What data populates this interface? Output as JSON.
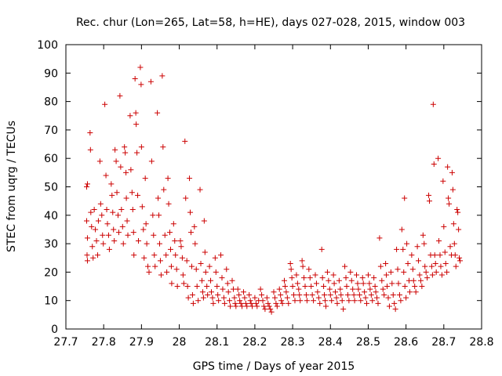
{
  "chart_data": {
    "type": "scatter",
    "title": "Rec. chur (Lon=265, Lat=58, h=HE), days 027-028, 2015, window 003",
    "xlabel": "GPS time / Days of year 2015",
    "ylabel": "STEC from uqrg / TECUs",
    "xlim": [
      27.7,
      28.8
    ],
    "ylim": [
      0,
      100
    ],
    "xticks": [
      "27.7",
      "27.8",
      "27.9",
      "28",
      "28.1",
      "28.2",
      "28.3",
      "28.4",
      "28.5",
      "28.6",
      "28.7",
      "28.8"
    ],
    "xtick_values": [
      27.7,
      27.8,
      27.9,
      28.0,
      28.1,
      28.2,
      28.3,
      28.4,
      28.5,
      28.6,
      28.7,
      28.8
    ],
    "yticks": [
      "0",
      "10",
      "20",
      "30",
      "40",
      "50",
      "60",
      "70",
      "80",
      "90",
      "100"
    ],
    "ytick_values": [
      0,
      10,
      20,
      30,
      40,
      50,
      60,
      70,
      80,
      90,
      100
    ],
    "grid": false,
    "marker": "plus",
    "color": "#cc0000",
    "points": [
      [
        27.755,
        50
      ],
      [
        27.757,
        51
      ],
      [
        27.755,
        38
      ],
      [
        27.757,
        32
      ],
      [
        27.756,
        26
      ],
      [
        27.757,
        24
      ],
      [
        27.764,
        69
      ],
      [
        27.765,
        63
      ],
      [
        27.766,
        41
      ],
      [
        27.768,
        36
      ],
      [
        27.77,
        29
      ],
      [
        27.772,
        25
      ],
      [
        27.775,
        42
      ],
      [
        27.778,
        35
      ],
      [
        27.781,
        31
      ],
      [
        27.784,
        26
      ],
      [
        27.786,
        38
      ],
      [
        27.79,
        59
      ],
      [
        27.792,
        44
      ],
      [
        27.795,
        40
      ],
      [
        27.797,
        33
      ],
      [
        27.799,
        30
      ],
      [
        27.803,
        79
      ],
      [
        27.806,
        54
      ],
      [
        27.808,
        42
      ],
      [
        27.81,
        37
      ],
      [
        27.813,
        33
      ],
      [
        27.815,
        28
      ],
      [
        27.82,
        51
      ],
      [
        27.822,
        47
      ],
      [
        27.824,
        41
      ],
      [
        27.826,
        35
      ],
      [
        27.828,
        31
      ],
      [
        27.83,
        63
      ],
      [
        27.833,
        59
      ],
      [
        27.835,
        48
      ],
      [
        27.838,
        40
      ],
      [
        27.84,
        34
      ],
      [
        27.843,
        82
      ],
      [
        27.845,
        57
      ],
      [
        27.847,
        42
      ],
      [
        27.85,
        36
      ],
      [
        27.852,
        30
      ],
      [
        27.855,
        64
      ],
      [
        27.857,
        62
      ],
      [
        27.859,
        55
      ],
      [
        27.86,
        46
      ],
      [
        27.862,
        38
      ],
      [
        27.864,
        33
      ],
      [
        27.87,
        75
      ],
      [
        27.872,
        56
      ],
      [
        27.875,
        48
      ],
      [
        27.877,
        42
      ],
      [
        27.879,
        34
      ],
      [
        27.88,
        26
      ],
      [
        27.883,
        88
      ],
      [
        27.885,
        76
      ],
      [
        27.886,
        72
      ],
      [
        27.888,
        62
      ],
      [
        27.89,
        47
      ],
      [
        27.892,
        31
      ],
      [
        27.897,
        92
      ],
      [
        27.899,
        86
      ],
      [
        27.9,
        64
      ],
      [
        27.902,
        43
      ],
      [
        27.905,
        35
      ],
      [
        27.907,
        25
      ],
      [
        27.91,
        53
      ],
      [
        27.912,
        37
      ],
      [
        27.914,
        30
      ],
      [
        27.917,
        22
      ],
      [
        27.92,
        20
      ],
      [
        27.925,
        87
      ],
      [
        27.927,
        59
      ],
      [
        27.93,
        40
      ],
      [
        27.932,
        33
      ],
      [
        27.934,
        26
      ],
      [
        27.936,
        22
      ],
      [
        27.942,
        76
      ],
      [
        27.944,
        46
      ],
      [
        27.946,
        40
      ],
      [
        27.948,
        30
      ],
      [
        27.95,
        24
      ],
      [
        27.952,
        19
      ],
      [
        27.955,
        89
      ],
      [
        27.957,
        64
      ],
      [
        27.959,
        49
      ],
      [
        27.962,
        33
      ],
      [
        27.965,
        26
      ],
      [
        27.967,
        20
      ],
      [
        27.97,
        53
      ],
      [
        27.972,
        44
      ],
      [
        27.975,
        34
      ],
      [
        27.977,
        28
      ],
      [
        27.979,
        22
      ],
      [
        27.98,
        16
      ],
      [
        27.985,
        37
      ],
      [
        27.988,
        31
      ],
      [
        27.99,
        26
      ],
      [
        27.993,
        21
      ],
      [
        27.995,
        15
      ],
      [
        28.003,
        31
      ],
      [
        28.005,
        29
      ],
      [
        28.008,
        25
      ],
      [
        28.01,
        19
      ],
      [
        28.012,
        16
      ],
      [
        28.015,
        66
      ],
      [
        28.017,
        46
      ],
      [
        28.02,
        24
      ],
      [
        28.022,
        15
      ],
      [
        28.024,
        11
      ],
      [
        28.027,
        53
      ],
      [
        28.029,
        41
      ],
      [
        28.031,
        34
      ],
      [
        28.033,
        22
      ],
      [
        28.035,
        12
      ],
      [
        28.037,
        9
      ],
      [
        28.04,
        36
      ],
      [
        28.042,
        30
      ],
      [
        28.045,
        21
      ],
      [
        28.047,
        15
      ],
      [
        28.05,
        10
      ],
      [
        28.055,
        49
      ],
      [
        28.057,
        23
      ],
      [
        28.06,
        17
      ],
      [
        28.062,
        13
      ],
      [
        28.064,
        11
      ],
      [
        28.066,
        38
      ],
      [
        28.068,
        27
      ],
      [
        28.07,
        20
      ],
      [
        28.073,
        15
      ],
      [
        28.075,
        12
      ],
      [
        28.08,
        22
      ],
      [
        28.083,
        17
      ],
      [
        28.085,
        13
      ],
      [
        28.088,
        11
      ],
      [
        28.09,
        9
      ],
      [
        28.095,
        25
      ],
      [
        28.097,
        20
      ],
      [
        28.1,
        15
      ],
      [
        28.102,
        12
      ],
      [
        28.104,
        10
      ],
      [
        28.11,
        26
      ],
      [
        28.113,
        18
      ],
      [
        28.115,
        14
      ],
      [
        28.118,
        11
      ],
      [
        28.12,
        9
      ],
      [
        28.125,
        21
      ],
      [
        28.128,
        16
      ],
      [
        28.13,
        13
      ],
      [
        28.133,
        10
      ],
      [
        28.135,
        8
      ],
      [
        28.14,
        17
      ],
      [
        28.143,
        14
      ],
      [
        28.146,
        11
      ],
      [
        28.148,
        9
      ],
      [
        28.15,
        8
      ],
      [
        28.155,
        14
      ],
      [
        28.158,
        12
      ],
      [
        28.16,
        10
      ],
      [
        28.163,
        9
      ],
      [
        28.166,
        8
      ],
      [
        28.17,
        13
      ],
      [
        28.173,
        11
      ],
      [
        28.176,
        9
      ],
      [
        28.179,
        8
      ],
      [
        28.185,
        12
      ],
      [
        28.188,
        10
      ],
      [
        28.19,
        9
      ],
      [
        28.193,
        8
      ],
      [
        28.2,
        11
      ],
      [
        28.203,
        9
      ],
      [
        28.206,
        8
      ],
      [
        28.21,
        10
      ],
      [
        28.215,
        14
      ],
      [
        28.218,
        12
      ],
      [
        28.221,
        10
      ],
      [
        28.224,
        8
      ],
      [
        28.227,
        7
      ],
      [
        28.232,
        11
      ],
      [
        28.235,
        9
      ],
      [
        28.238,
        8
      ],
      [
        28.241,
        7
      ],
      [
        28.244,
        6
      ],
      [
        28.25,
        13
      ],
      [
        28.253,
        11
      ],
      [
        28.256,
        9
      ],
      [
        28.259,
        8
      ],
      [
        28.265,
        14
      ],
      [
        28.268,
        12
      ],
      [
        28.27,
        10
      ],
      [
        28.273,
        9
      ],
      [
        28.278,
        17
      ],
      [
        28.28,
        15
      ],
      [
        28.283,
        13
      ],
      [
        28.286,
        11
      ],
      [
        28.289,
        9
      ],
      [
        28.294,
        23
      ],
      [
        28.296,
        21
      ],
      [
        28.298,
        18
      ],
      [
        28.3,
        15
      ],
      [
        28.303,
        12
      ],
      [
        28.306,
        10
      ],
      [
        28.31,
        19
      ],
      [
        28.313,
        16
      ],
      [
        28.316,
        14
      ],
      [
        28.318,
        12
      ],
      [
        28.32,
        10
      ],
      [
        28.325,
        24
      ],
      [
        28.327,
        22
      ],
      [
        28.33,
        18
      ],
      [
        28.333,
        15
      ],
      [
        28.336,
        12
      ],
      [
        28.338,
        10
      ],
      [
        28.343,
        21
      ],
      [
        28.346,
        18
      ],
      [
        28.349,
        15
      ],
      [
        28.352,
        12
      ],
      [
        28.355,
        10
      ],
      [
        28.36,
        19
      ],
      [
        28.363,
        16
      ],
      [
        28.366,
        13
      ],
      [
        28.369,
        11
      ],
      [
        28.372,
        9
      ],
      [
        28.377,
        28
      ],
      [
        28.379,
        18
      ],
      [
        28.382,
        15
      ],
      [
        28.384,
        12
      ],
      [
        28.386,
        10
      ],
      [
        28.388,
        8
      ],
      [
        28.392,
        20
      ],
      [
        28.395,
        17
      ],
      [
        28.398,
        14
      ],
      [
        28.4,
        12
      ],
      [
        28.403,
        10
      ],
      [
        28.408,
        19
      ],
      [
        28.41,
        16
      ],
      [
        28.413,
        13
      ],
      [
        28.416,
        11
      ],
      [
        28.418,
        9
      ],
      [
        28.423,
        17
      ],
      [
        28.426,
        14
      ],
      [
        28.428,
        12
      ],
      [
        28.431,
        10
      ],
      [
        28.434,
        7
      ],
      [
        28.438,
        22
      ],
      [
        28.441,
        18
      ],
      [
        28.443,
        15
      ],
      [
        28.446,
        12
      ],
      [
        28.449,
        10
      ],
      [
        28.453,
        20
      ],
      [
        28.456,
        17
      ],
      [
        28.459,
        14
      ],
      [
        28.462,
        12
      ],
      [
        28.464,
        10
      ],
      [
        28.469,
        19
      ],
      [
        28.472,
        16
      ],
      [
        28.474,
        14
      ],
      [
        28.477,
        12
      ],
      [
        28.48,
        10
      ],
      [
        28.485,
        18
      ],
      [
        28.487,
        16
      ],
      [
        28.49,
        13
      ],
      [
        28.493,
        11
      ],
      [
        28.496,
        9
      ],
      [
        28.5,
        19
      ],
      [
        28.503,
        16
      ],
      [
        28.505,
        14
      ],
      [
        28.508,
        12
      ],
      [
        28.511,
        10
      ],
      [
        28.515,
        18
      ],
      [
        28.518,
        15
      ],
      [
        28.52,
        13
      ],
      [
        28.523,
        11
      ],
      [
        28.526,
        9
      ],
      [
        28.53,
        32
      ],
      [
        28.533,
        22
      ],
      [
        28.536,
        17
      ],
      [
        28.539,
        14
      ],
      [
        28.542,
        12
      ],
      [
        28.546,
        23
      ],
      [
        28.548,
        19
      ],
      [
        28.55,
        15
      ],
      [
        28.553,
        11
      ],
      [
        28.556,
        8
      ],
      [
        28.56,
        20
      ],
      [
        28.563,
        16
      ],
      [
        28.566,
        12
      ],
      [
        28.569,
        9
      ],
      [
        28.572,
        7
      ],
      [
        28.575,
        28
      ],
      [
        28.578,
        21
      ],
      [
        28.58,
        16
      ],
      [
        28.583,
        12
      ],
      [
        28.586,
        10
      ],
      [
        28.589,
        35
      ],
      [
        28.592,
        28
      ],
      [
        28.594,
        20
      ],
      [
        28.597,
        15
      ],
      [
        28.6,
        11
      ],
      [
        28.596,
        46
      ],
      [
        28.602,
        30
      ],
      [
        28.605,
        23
      ],
      [
        28.608,
        17
      ],
      [
        28.61,
        13
      ],
      [
        28.615,
        26
      ],
      [
        28.618,
        21
      ],
      [
        28.62,
        17
      ],
      [
        28.623,
        15
      ],
      [
        28.626,
        13
      ],
      [
        28.63,
        29
      ],
      [
        28.633,
        24
      ],
      [
        28.636,
        19
      ],
      [
        28.639,
        17
      ],
      [
        28.642,
        15
      ],
      [
        28.645,
        33
      ],
      [
        28.648,
        30
      ],
      [
        28.65,
        22
      ],
      [
        28.653,
        20
      ],
      [
        28.656,
        18
      ],
      [
        28.66,
        47
      ],
      [
        28.662,
        45
      ],
      [
        28.665,
        26
      ],
      [
        28.668,
        22
      ],
      [
        28.67,
        19
      ],
      [
        28.672,
        79
      ],
      [
        28.674,
        58
      ],
      [
        28.676,
        26
      ],
      [
        28.678,
        23
      ],
      [
        28.68,
        20
      ],
      [
        28.685,
        60
      ],
      [
        28.687,
        31
      ],
      [
        28.69,
        26
      ],
      [
        28.692,
        22
      ],
      [
        28.695,
        19
      ],
      [
        28.698,
        52
      ],
      [
        28.7,
        36
      ],
      [
        28.703,
        27
      ],
      [
        28.705,
        23
      ],
      [
        28.708,
        20
      ],
      [
        28.71,
        57
      ],
      [
        28.712,
        46
      ],
      [
        28.714,
        44
      ],
      [
        28.717,
        29
      ],
      [
        28.72,
        26
      ],
      [
        28.722,
        55
      ],
      [
        28.724,
        49
      ],
      [
        28.726,
        37
      ],
      [
        28.728,
        30
      ],
      [
        28.73,
        26
      ],
      [
        28.732,
        22
      ],
      [
        28.735,
        42
      ],
      [
        28.737,
        41
      ],
      [
        28.739,
        35
      ],
      [
        28.741,
        25
      ],
      [
        28.743,
        24
      ]
    ]
  }
}
